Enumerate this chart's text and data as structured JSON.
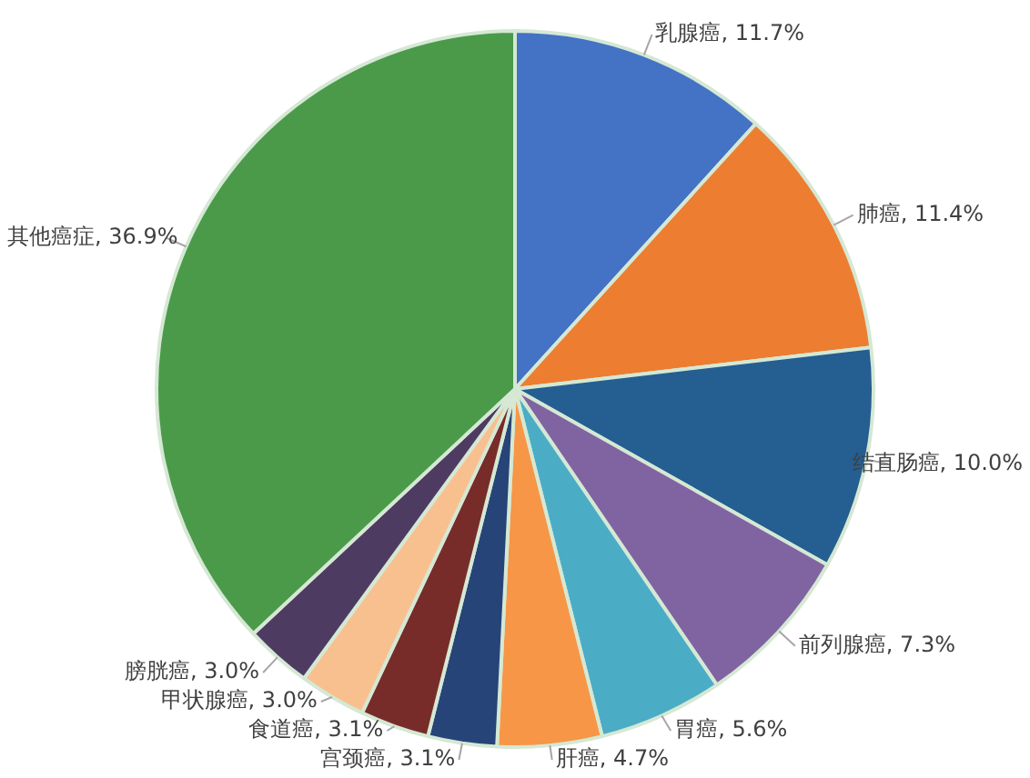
{
  "chart_data": {
    "type": "pie",
    "categories": [
      "乳腺癌",
      "肺癌",
      "结直肠癌",
      "前列腺癌",
      "胃癌",
      "肝癌",
      "宫颈癌",
      "食道癌",
      "甲状腺癌",
      "膀胱癌",
      "其他癌症"
    ],
    "values": [
      11.7,
      11.4,
      10.0,
      7.3,
      5.6,
      4.7,
      3.1,
      3.1,
      3.0,
      3.0,
      36.9
    ],
    "value_labels": [
      "11.7%",
      "11.4%",
      "10.0%",
      "7.3%",
      "5.6%",
      "4.7%",
      "3.1%",
      "3.1%",
      "3.0%",
      "3.0%",
      "36.9%"
    ],
    "colors": [
      "#4472c4",
      "#ed7d31",
      "#255e91",
      "#8064a2",
      "#4bacc6",
      "#f79646",
      "#264478",
      "#772c2a",
      "#f9c08f",
      "#4e3b62",
      "#4a9a4a"
    ],
    "legend": false
  }
}
